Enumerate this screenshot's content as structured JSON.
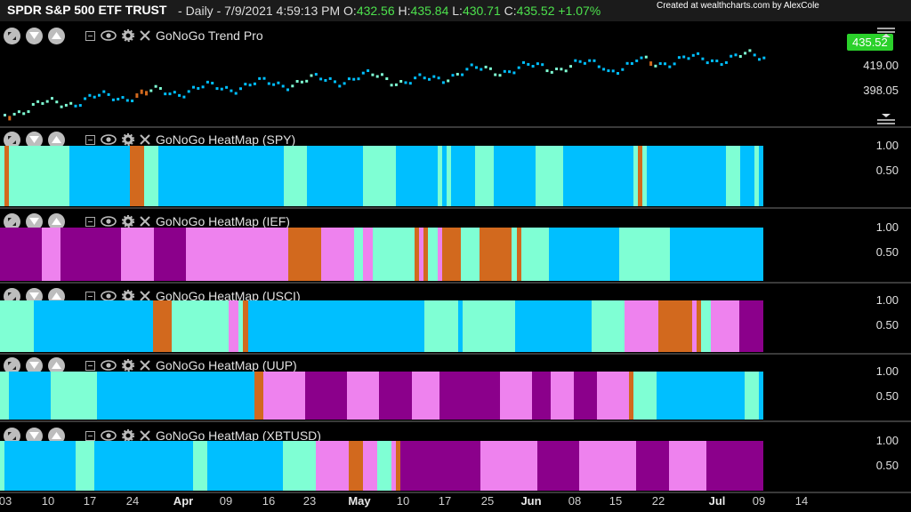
{
  "header": {
    "title": "SPDR S&P 500 ETF TRUST",
    "sep": "-",
    "interval": "Daily",
    "datetime": "7/9/2021 4:59:13 PM",
    "o_label": "O:",
    "o": "432.56",
    "h_label": "H:",
    "h": "435.84",
    "l_label": "L:",
    "l": "430.71",
    "c_label": "C:",
    "c": "435.52",
    "change": "+1.07%",
    "credit": "Created at wealthcharts.com by AlexCole"
  },
  "colors": {
    "bg": "#000000",
    "go_strong": "#00bfff",
    "go_weak": "#7fffd4",
    "nogo_strong": "#8b008b",
    "nogo_weak": "#ee82ee",
    "neutral": "#d2691e",
    "price_tag": "#2bd12b"
  },
  "panes": [
    {
      "name": "GoNoGo Trend Pro",
      "ticks": [
        "419.00",
        "398.05"
      ],
      "last_price": "435.52"
    },
    {
      "name": "GoNoGo HeatMap (SPY)",
      "ticks": [
        "1.00",
        "0.50"
      ]
    },
    {
      "name": "GoNoGo HeatMap (IEF)",
      "ticks": [
        "1.00",
        "0.50"
      ]
    },
    {
      "name": "GoNoGo HeatMap (USCI)",
      "ticks": [
        "1.00",
        "0.50"
      ]
    },
    {
      "name": "GoNoGo HeatMap (UUP)",
      "ticks": [
        "1.00",
        "0.50"
      ]
    },
    {
      "name": "GoNoGo HeatMap (XBTUSD)",
      "ticks": [
        "1.00",
        "0.50"
      ]
    }
  ],
  "xaxis": [
    {
      "label": "03",
      "month": false
    },
    {
      "label": "10",
      "month": false
    },
    {
      "label": "17",
      "month": false
    },
    {
      "label": "24",
      "month": false
    },
    {
      "label": "Apr",
      "month": true
    },
    {
      "label": "09",
      "month": false
    },
    {
      "label": "16",
      "month": false
    },
    {
      "label": "23",
      "month": false
    },
    {
      "label": "May",
      "month": true
    },
    {
      "label": "10",
      "month": false
    },
    {
      "label": "17",
      "month": false
    },
    {
      "label": "25",
      "month": false
    },
    {
      "label": "Jun",
      "month": true
    },
    {
      "label": "08",
      "month": false
    },
    {
      "label": "15",
      "month": false
    },
    {
      "label": "22",
      "month": false
    },
    {
      "label": "Jul",
      "month": true
    },
    {
      "label": "09",
      "month": false
    },
    {
      "label": "14",
      "month": false
    }
  ],
  "heatmaps": {
    "SPY": [
      "a",
      "n",
      "a",
      "a",
      "a",
      "a",
      "a",
      "a",
      "a",
      "a",
      "a",
      "a",
      "a",
      "a",
      "a",
      "b",
      "b",
      "b",
      "b",
      "b",
      "b",
      "b",
      "b",
      "b",
      "b",
      "b",
      "b",
      "b",
      "n",
      "n",
      "n",
      "a",
      "a",
      "a",
      "b",
      "b",
      "b",
      "b",
      "b",
      "b",
      "b",
      "b",
      "b",
      "b",
      "b",
      "b",
      "b",
      "b",
      "b",
      "b",
      "b",
      "b",
      "b",
      "b",
      "b",
      "b",
      "b",
      "b",
      "b",
      "b",
      "b",
      "a",
      "a",
      "a",
      "a",
      "a",
      "b",
      "b",
      "b",
      "b",
      "b",
      "b",
      "b",
      "b",
      "b",
      "b",
      "b",
      "b",
      "a",
      "a",
      "a",
      "a",
      "a",
      "a",
      "a",
      "b",
      "b",
      "b",
      "b",
      "b",
      "b",
      "b",
      "b",
      "b",
      "a",
      "b",
      "a",
      "b",
      "b",
      "b",
      "b",
      "b",
      "a",
      "a",
      "a",
      "a",
      "b",
      "b",
      "b",
      "b",
      "b",
      "b",
      "b",
      "b",
      "b",
      "a",
      "a",
      "a",
      "a",
      "a",
      "a",
      "b",
      "b",
      "b",
      "b",
      "b",
      "b",
      "b",
      "b",
      "b",
      "b",
      "b",
      "b",
      "b",
      "b",
      "b",
      "a",
      "n",
      "a",
      "b",
      "b",
      "b",
      "b",
      "b",
      "b",
      "b",
      "b",
      "b",
      "b",
      "b",
      "b",
      "b",
      "b",
      "b",
      "b",
      "b",
      "a",
      "a",
      "a",
      "b",
      "b",
      "b",
      "a",
      "b"
    ],
    "IEF": [
      "p",
      "p",
      "p",
      "p",
      "p",
      "p",
      "p",
      "p",
      "p",
      "v",
      "v",
      "v",
      "v",
      "p",
      "p",
      "p",
      "p",
      "p",
      "p",
      "p",
      "p",
      "p",
      "p",
      "p",
      "p",
      "p",
      "v",
      "v",
      "v",
      "v",
      "v",
      "v",
      "v",
      "p",
      "p",
      "p",
      "p",
      "p",
      "p",
      "p",
      "v",
      "v",
      "v",
      "v",
      "v",
      "v",
      "v",
      "v",
      "v",
      "v",
      "v",
      "v",
      "v",
      "v",
      "v",
      "v",
      "v",
      "v",
      "v",
      "v",
      "v",
      "v",
      "n",
      "n",
      "n",
      "n",
      "n",
      "n",
      "n",
      "v",
      "v",
      "v",
      "v",
      "v",
      "v",
      "v",
      "a",
      "a",
      "v",
      "v",
      "a",
      "a",
      "a",
      "a",
      "a",
      "a",
      "a",
      "a",
      "a",
      "n",
      "v",
      "n",
      "a",
      "a",
      "v",
      "n",
      "n",
      "n",
      "n",
      "a",
      "a",
      "a",
      "a",
      "n",
      "n",
      "n",
      "n",
      "n",
      "n",
      "n",
      "a",
      "n",
      "a",
      "a",
      "a",
      "a",
      "a",
      "a",
      "b",
      "b",
      "b",
      "b",
      "b",
      "b",
      "b",
      "b",
      "b",
      "b",
      "b",
      "b",
      "b",
      "b",
      "b",
      "a",
      "a",
      "a",
      "a",
      "a",
      "a",
      "a",
      "a",
      "a",
      "a",
      "a",
      "b",
      "b",
      "b",
      "b",
      "b",
      "b",
      "b",
      "b",
      "b",
      "b",
      "b",
      "b",
      "b",
      "b",
      "b",
      "b",
      "b",
      "b",
      "b",
      "b"
    ],
    "USCI": [
      "a",
      "a",
      "a",
      "a",
      "a",
      "a",
      "a",
      "b",
      "b",
      "b",
      "b",
      "b",
      "b",
      "b",
      "b",
      "b",
      "b",
      "b",
      "b",
      "b",
      "b",
      "b",
      "b",
      "b",
      "b",
      "b",
      "b",
      "b",
      "b",
      "b",
      "b",
      "b",
      "n",
      "n",
      "n",
      "n",
      "a",
      "a",
      "a",
      "a",
      "a",
      "a",
      "a",
      "a",
      "a",
      "a",
      "a",
      "a",
      "v",
      "v",
      "a",
      "n",
      "b",
      "b",
      "b",
      "b",
      "b",
      "b",
      "b",
      "b",
      "b",
      "b",
      "b",
      "b",
      "b",
      "b",
      "b",
      "b",
      "b",
      "b",
      "b",
      "b",
      "b",
      "b",
      "b",
      "b",
      "b",
      "b",
      "b",
      "b",
      "b",
      "b",
      "b",
      "b",
      "b",
      "b",
      "b",
      "b",
      "b",
      "a",
      "a",
      "a",
      "a",
      "a",
      "a",
      "a",
      "b",
      "a",
      "a",
      "a",
      "a",
      "a",
      "a",
      "a",
      "a",
      "a",
      "a",
      "a",
      "b",
      "b",
      "b",
      "b",
      "b",
      "b",
      "b",
      "b",
      "b",
      "b",
      "b",
      "b",
      "b",
      "b",
      "b",
      "b",
      "a",
      "a",
      "a",
      "a",
      "a",
      "a",
      "a",
      "v",
      "v",
      "v",
      "v",
      "v",
      "v",
      "v",
      "n",
      "n",
      "n",
      "n",
      "n",
      "n",
      "n",
      "v",
      "n",
      "a",
      "a",
      "v",
      "v",
      "v",
      "v",
      "v",
      "v",
      "p",
      "p",
      "p",
      "p",
      "p"
    ],
    "UUP": [
      "a",
      "a",
      "b",
      "b",
      "b",
      "b",
      "b",
      "b",
      "b",
      "b",
      "b",
      "a",
      "a",
      "a",
      "a",
      "a",
      "a",
      "a",
      "a",
      "a",
      "a",
      "b",
      "b",
      "b",
      "b",
      "b",
      "b",
      "b",
      "b",
      "b",
      "b",
      "b",
      "b",
      "b",
      "b",
      "b",
      "b",
      "b",
      "b",
      "b",
      "b",
      "b",
      "b",
      "b",
      "b",
      "b",
      "b",
      "b",
      "b",
      "b",
      "b",
      "b",
      "b",
      "b",
      "b",
      "n",
      "n",
      "v",
      "v",
      "v",
      "v",
      "v",
      "v",
      "v",
      "v",
      "v",
      "p",
      "p",
      "p",
      "p",
      "p",
      "p",
      "p",
      "p",
      "p",
      "v",
      "v",
      "v",
      "v",
      "v",
      "v",
      "v",
      "p",
      "p",
      "p",
      "p",
      "p",
      "p",
      "p",
      "v",
      "v",
      "v",
      "v",
      "v",
      "v",
      "p",
      "p",
      "p",
      "p",
      "p",
      "p",
      "p",
      "p",
      "p",
      "p",
      "p",
      "p",
      "p",
      "v",
      "v",
      "v",
      "v",
      "v",
      "v",
      "v",
      "p",
      "p",
      "p",
      "p",
      "v",
      "v",
      "v",
      "v",
      "v",
      "p",
      "p",
      "p",
      "p",
      "p",
      "v",
      "v",
      "v",
      "v",
      "v",
      "v",
      "v",
      "n",
      "a",
      "a",
      "a",
      "a",
      "a",
      "b",
      "b",
      "b",
      "b",
      "b",
      "b",
      "b",
      "b",
      "b",
      "b",
      "b",
      "b",
      "b",
      "b",
      "b",
      "b",
      "b",
      "b",
      "b",
      "a",
      "a",
      "a",
      "b"
    ],
    "XBTUSD": [
      "a",
      "b",
      "b",
      "b",
      "b",
      "b",
      "b",
      "b",
      "b",
      "b",
      "b",
      "b",
      "b",
      "b",
      "b",
      "b",
      "a",
      "a",
      "a",
      "a",
      "b",
      "b",
      "b",
      "b",
      "b",
      "b",
      "b",
      "b",
      "b",
      "b",
      "b",
      "b",
      "b",
      "b",
      "b",
      "b",
      "b",
      "b",
      "b",
      "b",
      "b",
      "a",
      "a",
      "a",
      "b",
      "b",
      "b",
      "b",
      "b",
      "b",
      "b",
      "b",
      "b",
      "b",
      "b",
      "b",
      "b",
      "b",
      "b",
      "b",
      "a",
      "a",
      "a",
      "a",
      "a",
      "a",
      "a",
      "v",
      "v",
      "v",
      "v",
      "v",
      "v",
      "v",
      "n",
      "n",
      "n",
      "v",
      "v",
      "v",
      "a",
      "a",
      "a",
      "v",
      "n",
      "p",
      "p",
      "p",
      "p",
      "p",
      "p",
      "p",
      "p",
      "p",
      "p",
      "p",
      "p",
      "p",
      "p",
      "p",
      "p",
      "p",
      "v",
      "v",
      "v",
      "v",
      "v",
      "v",
      "v",
      "v",
      "v",
      "v",
      "v",
      "v",
      "p",
      "p",
      "p",
      "p",
      "p",
      "p",
      "p",
      "p",
      "p",
      "v",
      "v",
      "v",
      "v",
      "v",
      "v",
      "v",
      "v",
      "v",
      "v",
      "v",
      "v",
      "p",
      "p",
      "p",
      "p",
      "p",
      "p",
      "p",
      "v",
      "v",
      "v",
      "v",
      "v",
      "v",
      "v",
      "v",
      "p",
      "p",
      "p",
      "p",
      "p",
      "p",
      "p",
      "p",
      "p",
      "p",
      "p",
      "p"
    ]
  }
}
